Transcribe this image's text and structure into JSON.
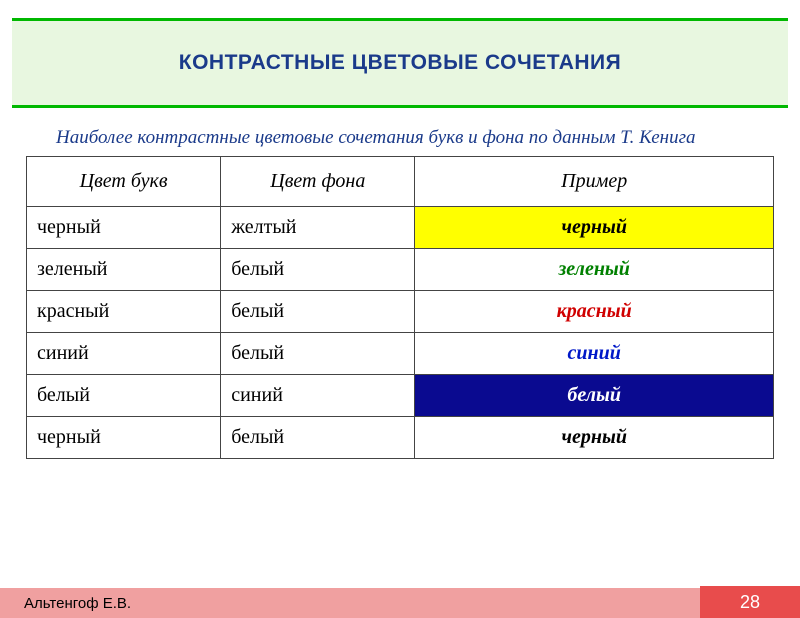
{
  "title": "КОНТРАСТНЫЕ ЦВЕТОВЫЕ СОЧЕТАНИЯ",
  "caption": "Наиболее контрастные цветовые сочетания букв и фона по данным Т. Кенига",
  "columns": [
    "Цвет букв",
    "Цвет фона",
    "Пример"
  ],
  "rows": [
    {
      "letter": "черный",
      "bg": "желтый",
      "example": "черный",
      "ex_fg": "#000000",
      "ex_bg": "#ffff00"
    },
    {
      "letter": "зеленый",
      "bg": "белый",
      "example": "зеленый",
      "ex_fg": "#008000",
      "ex_bg": "#ffffff"
    },
    {
      "letter": "красный",
      "bg": "белый",
      "example": "красный",
      "ex_fg": "#d00000",
      "ex_bg": "#ffffff"
    },
    {
      "letter": "синий",
      "bg": "белый",
      "example": "синий",
      "ex_fg": "#0018c8",
      "ex_bg": "#ffffff"
    },
    {
      "letter": "белый",
      "bg": "синий",
      "example": "белый",
      "ex_fg": "#ffffff",
      "ex_bg": "#0a0a90"
    },
    {
      "letter": "черный",
      "bg": "белый",
      "example": "черный",
      "ex_fg": "#000000",
      "ex_bg": "#ffffff"
    }
  ],
  "footer": {
    "author": "Альтенгоф Е.В.",
    "page": "28"
  },
  "style": {
    "title_bg": "#e8f7e0",
    "title_border": "#00b800",
    "title_color": "#1a3a8a",
    "caption_color": "#1a3a8a",
    "footer_author_bg": "#f0a0a0",
    "footer_page_bg": "#e84c4c"
  }
}
